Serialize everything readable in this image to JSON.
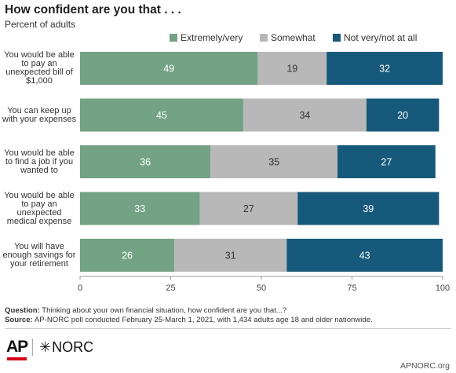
{
  "title": "How confident are you that . . .",
  "subtitle": "Percent of adults",
  "chart_data": {
    "type": "bar",
    "orientation": "horizontal",
    "stacked": true,
    "categories": [
      "You would be able to pay an unexpected bill of $1,000",
      "You can keep up with your expenses",
      "You would be able to find a job if you wanted to",
      "You would be able to pay an unexpected medical expense",
      "You will have enough savings for your retirement"
    ],
    "category_lines": [
      [
        "You would be able",
        "to pay an",
        "unexpected bill of",
        "$1,000"
      ],
      [
        "You can keep up",
        "with your expenses"
      ],
      [
        "You would be able",
        "to find a job if you",
        "wanted to"
      ],
      [
        "You would be able",
        "to pay an",
        "unexpected",
        "medical expense"
      ],
      [
        "You will have",
        "enough savings for",
        "your retirement"
      ]
    ],
    "series": [
      {
        "name": "Extremely/very",
        "color": "#73a284",
        "values": [
          49,
          45,
          36,
          33,
          26
        ]
      },
      {
        "name": "Somewhat",
        "color": "#b8b8b8",
        "values": [
          19,
          34,
          35,
          27,
          31
        ]
      },
      {
        "name": "Not very/not at all",
        "color": "#17597a",
        "values": [
          32,
          20,
          27,
          39,
          43
        ]
      }
    ],
    "xlim": [
      0,
      100
    ],
    "xticks": [
      "0",
      "25",
      "50",
      "75",
      "100"
    ],
    "xtick_values": [
      0,
      25,
      50,
      75,
      100
    ],
    "legend": "top-right",
    "grid": false
  },
  "notes": {
    "question_label": "Question:",
    "question_text": " Thinking about your own financial situation, how confident are you that...?",
    "source_label": "Source:",
    "source_text": " AP-NORC poll conducted February 25-March 1, 2021, with 1,434 adults age 18 and older nationwide."
  },
  "footer": {
    "ap_logo": "AP",
    "norc_logo": "NORC",
    "site": "APNORC.org"
  }
}
